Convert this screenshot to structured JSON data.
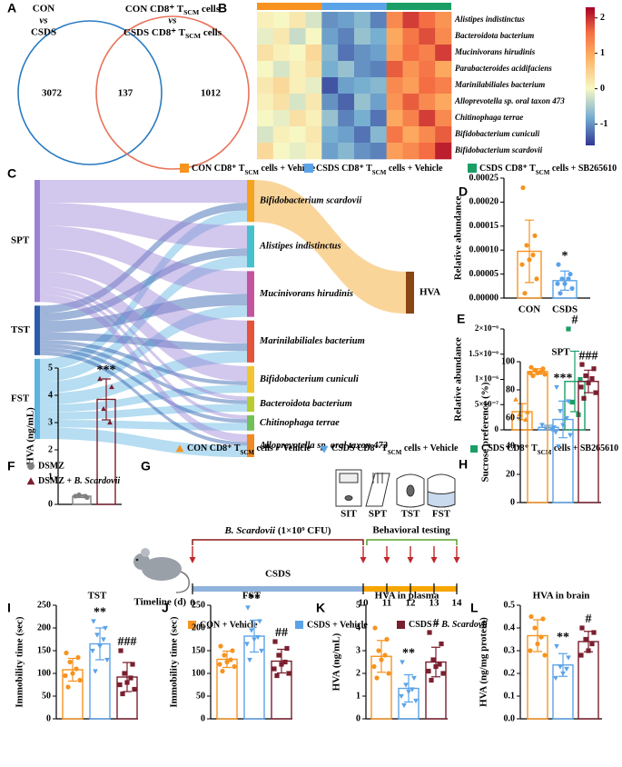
{
  "chart_data": [
    {
      "type": "venn",
      "label": "A",
      "sets": [
        {
          "color": "#2b7bc0",
          "lines": [
            "CON",
            {
              "text": "vs",
              "style": "italic"
            },
            "CSDS"
          ]
        },
        {
          "color": "#e8735a",
          "lines": [
            [
              "CON CD8⁺ T",
              {
                "text": "SCM",
                "style": "sub"
              },
              " cells"
            ],
            {
              "text": "vs",
              "style": "italic"
            },
            [
              "CSDS CD8⁺ T",
              {
                "text": "SCM",
                "style": "sub"
              },
              " cells"
            ]
          ]
        }
      ],
      "counts": [
        3072,
        137,
        1012
      ]
    },
    {
      "type": "heatmap",
      "label": "B",
      "rows": [
        "Alistipes indistinctus",
        "Bacteroidota bacterium",
        "Mucinivorans hirudinis",
        "Parabacteroides acidifaciens",
        "Marinilabiliales bacterium",
        "Alloprevotella sp. oral taxon 473",
        "Chitinophaga terrae",
        "Bifidobacterium cuniculi",
        "Bifidobacterium scardovii"
      ],
      "matrix": [
        [
          0.1,
          0.0,
          0.2,
          -0.2,
          -1.0,
          -0.9,
          -0.7,
          -1.1,
          1.3,
          1.9,
          1.6,
          1.2
        ],
        [
          -0.1,
          0.2,
          -0.3,
          0.0,
          -0.9,
          -1.1,
          -0.6,
          -0.8,
          1.0,
          1.5,
          1.8,
          1.3
        ],
        [
          0.3,
          0.1,
          0.0,
          0.4,
          -0.7,
          -1.2,
          -1.0,
          -0.9,
          1.1,
          1.6,
          1.4,
          1.9
        ],
        [
          0.0,
          -0.2,
          0.1,
          0.3,
          -0.8,
          -0.6,
          -1.0,
          -1.1,
          1.7,
          1.2,
          1.5,
          1.0
        ],
        [
          0.2,
          0.4,
          0.1,
          -0.1,
          -1.4,
          -0.9,
          -0.8,
          -0.7,
          1.3,
          1.1,
          1.6,
          1.4
        ],
        [
          0.1,
          0.3,
          -0.2,
          0.2,
          -1.0,
          -1.3,
          -0.6,
          -0.9,
          1.2,
          1.7,
          1.3,
          1.0
        ],
        [
          0.0,
          -0.1,
          0.3,
          0.1,
          -0.6,
          -1.1,
          -0.8,
          -1.2,
          1.0,
          1.4,
          1.9,
          1.3
        ],
        [
          -0.2,
          0.1,
          0.0,
          0.2,
          -0.8,
          -0.9,
          -1.2,
          -0.7,
          1.5,
          1.0,
          1.3,
          1.7
        ],
        [
          0.4,
          0.0,
          -0.1,
          0.1,
          -0.9,
          -0.7,
          -1.0,
          -1.1,
          1.1,
          1.3,
          1.6,
          2.1
        ]
      ],
      "clim": [
        -1.6,
        2.3
      ],
      "cticks": [
        -1,
        0,
        1,
        2
      ],
      "groups": [
        {
          "color": "#f7931e",
          "name": [
            "CON CD8⁺ T",
            {
              "text": "SCM",
              "style": "sub"
            },
            " cells + Vehicle"
          ]
        },
        {
          "color": "#5ba3e8",
          "name": [
            "CSDS CD8⁺ T",
            {
              "text": "SCM",
              "style": "sub"
            },
            " cells + Vehicle"
          ]
        },
        {
          "color": "#1a9e66",
          "name": [
            "CSDS CD8⁺ T",
            {
              "text": "SCM",
              "style": "sub"
            },
            " cells + SB265610"
          ]
        }
      ]
    },
    {
      "type": "sankey",
      "label": "C",
      "nodes": [
        {
          "name": "SPT",
          "color": "#9c82d4",
          "column": 0
        },
        {
          "name": "TST",
          "color": "#2a5caa",
          "column": 0
        },
        {
          "name": "FST",
          "color": "#5db4e0",
          "column": 0
        },
        {
          "name": "Bifidobacterium scardovii",
          "color": "#f5a21e",
          "column": 1
        },
        {
          "name": "Alistipes indistinctus",
          "color": "#48c1cf",
          "column": 1
        },
        {
          "name": "Mucinivorans hirudinis",
          "color": "#c2559e",
          "column": 1
        },
        {
          "name": "Marinilabiliales bacterium",
          "color": "#e5533a",
          "column": 1
        },
        {
          "name": "Bifidobacterium cuniculi",
          "color": "#f3c432",
          "column": 1
        },
        {
          "name": "Bacteroidota bacterium",
          "color": "#b8cc2e",
          "column": 1
        },
        {
          "name": "Chitinophaga terrae",
          "color": "#72c05a",
          "column": 1
        },
        {
          "name": "Alloprevotella sp. oral taxon 473",
          "color": "#f08a24",
          "column": 1
        },
        {
          "name": "HVA",
          "color": "#8b4513",
          "column": 2
        }
      ],
      "links": [
        {
          "source": 0,
          "target": 3,
          "value": 3
        },
        {
          "source": 1,
          "target": 3,
          "value": 1
        },
        {
          "source": 2,
          "target": 3,
          "value": 1.5
        },
        {
          "source": 0,
          "target": 4,
          "value": 3
        },
        {
          "source": 1,
          "target": 4,
          "value": 1
        },
        {
          "source": 2,
          "target": 4,
          "value": 1.5
        },
        {
          "source": 0,
          "target": 5,
          "value": 3
        },
        {
          "source": 1,
          "target": 5,
          "value": 1.5
        },
        {
          "source": 2,
          "target": 5,
          "value": 1.5
        },
        {
          "source": 0,
          "target": 6,
          "value": 3
        },
        {
          "source": 1,
          "target": 6,
          "value": 1
        },
        {
          "source": 2,
          "target": 6,
          "value": 1.5
        },
        {
          "source": 0,
          "target": 7,
          "value": 2
        },
        {
          "source": 1,
          "target": 7,
          "value": 0.5
        },
        {
          "source": 2,
          "target": 7,
          "value": 1
        },
        {
          "source": 0,
          "target": 8,
          "value": 0.5
        },
        {
          "source": 1,
          "target": 8,
          "value": 0.5
        },
        {
          "source": 2,
          "target": 8,
          "value": 1
        },
        {
          "source": 0,
          "target": 9,
          "value": 0.5
        },
        {
          "source": 1,
          "target": 9,
          "value": 0.5
        },
        {
          "source": 2,
          "target": 9,
          "value": 1
        },
        {
          "source": 0,
          "target": 10,
          "value": 1
        },
        {
          "source": 1,
          "target": 10,
          "value": 0.5
        },
        {
          "source": 2,
          "target": 10,
          "value": 1.5
        },
        {
          "source": 3,
          "target": 11,
          "value": 5.5
        }
      ]
    },
    {
      "type": "dotbar",
      "label": "D",
      "ylabel": "Relative abundance",
      "legend": false,
      "ylim": [
        0,
        0.00025
      ],
      "yticks": [
        {
          "value": 0,
          "label": "0.00000"
        },
        5e-05,
        {
          "value": 0.0001,
          "label": "0.00010"
        },
        0.00015,
        {
          "value": 0.0002,
          "label": "0.00020"
        },
        0.00025
      ],
      "groups": [
        {
          "name": "CON",
          "color": "#f7931e",
          "marker": "circle",
          "value": 9.75e-05,
          "error": 6.5e-05,
          "points": [
            0.00023,
            0.00013,
            0.00011,
            9e-05,
            8e-05,
            7e-05,
            4e-05,
            1e-05
          ]
        },
        {
          "name": "CSDS",
          "color": "#5ba3e8",
          "marker": "circle",
          "value": 3.63e-05,
          "error": 2e-05,
          "points": [
            7e-05,
            5e-05,
            4e-05,
            4e-05,
            3e-05,
            3e-05,
            2e-05,
            1e-05
          ],
          "annotation": "*"
        }
      ]
    },
    {
      "type": "dotbar",
      "label": "E",
      "ylabel": "Relative abundance",
      "legend": true,
      "ylim": [
        0,
        2e-06
      ],
      "yticks": [
        0,
        {
          "value": 5e-07,
          "label": "5×10⁻⁷"
        },
        {
          "value": 1e-06,
          "label": "1×10⁻⁶"
        },
        {
          "value": 1.5e-06,
          "label": "1.5×10⁻⁶"
        },
        {
          "value": 2e-06,
          "label": "2×10⁻⁶"
        }
      ],
      "groups": [
        {
          "name": [
            "CON CD8⁺ T",
            {
              "text": "SCM",
              "style": "sub"
            },
            " cells + Vehicle"
          ],
          "color": "#f7931e",
          "marker": "triangle",
          "value": 3.6e-07,
          "error": 1.6e-07,
          "points": [
            6e-07,
            3.5e-07,
            3e-07,
            2e-07
          ]
        },
        {
          "name": [
            "CSDS CD8⁺ T",
            {
              "text": "SCM",
              "style": "sub"
            },
            " cells + Vehicle"
          ],
          "color": "#5ba3e8",
          "marker": "triangle-down",
          "value": 5e-08,
          "error": 4e-08,
          "points": [
            1e-07,
            5e-08,
            3e-08,
            1e-08
          ]
        },
        {
          "name": [
            "CSDS CD8⁺ T",
            {
              "text": "SCM",
              "style": "sub"
            },
            " cells + SB265610"
          ],
          "color": "#1a9e66",
          "marker": "square",
          "value": 9.6e-07,
          "error": 6e-07,
          "points": [
            2e-06,
            1e-06,
            5.5e-07,
            3e-07
          ],
          "annotation": "#"
        }
      ]
    },
    {
      "type": "dotbar",
      "label": "F",
      "ylabel": "HVA (ng/mL)",
      "legend": true,
      "ylim": [
        0,
        5
      ],
      "yticks": [
        0,
        1,
        2,
        3,
        4,
        5
      ],
      "groups": [
        {
          "name": "DSMZ",
          "color": "#808080",
          "marker": "circle",
          "value": 0.3,
          "error": 0.05,
          "points": [
            0.3,
            0.25,
            0.35,
            0.3
          ]
        },
        {
          "name": [
            "DSMZ + ",
            {
              "text": "B. Scardovii",
              "style": "italic"
            }
          ],
          "color": "#7a1f2e",
          "marker": "triangle",
          "value": 3.85,
          "error": 0.75,
          "points": [
            4.6,
            4.3,
            3.5,
            3.0
          ],
          "annotation": "***"
        }
      ]
    },
    {
      "type": "timeline",
      "label": "G",
      "treatment": [
        {
          "text": "B. Scardovii",
          "style": "italic"
        },
        " (1×10⁹ CFU)"
      ],
      "testing": "Behavioral testing",
      "phase": "CSDS",
      "axis_label": "Timeline (d)",
      "days": [
        0,
        10,
        11,
        12,
        13,
        14
      ],
      "tests": [
        "SIT",
        "SPT",
        "TST",
        "FST"
      ],
      "legend": [
        {
          "name": "CON + Vehicle",
          "color": "#f7931e"
        },
        {
          "name": "CSDS + Vehicle",
          "color": "#5ba3e8"
        },
        {
          "name": [
            "CSDS + ",
            {
              "text": "B. Scardovii",
              "style": "italic"
            }
          ],
          "color": "#7a1f2e"
        }
      ]
    },
    {
      "type": "dotbar",
      "label": "H",
      "title": "SPT",
      "ylabel": "Sucrose preference (%)",
      "legend": false,
      "ylim": [
        0,
        100
      ],
      "yticks": [
        0,
        20,
        40,
        60,
        80,
        100
      ],
      "groups": [
        {
          "color": "#f7931e",
          "marker": "circle",
          "value": 93,
          "error": 2,
          "points": [
            96,
            95,
            94,
            93,
            92,
            92,
            91,
            90
          ]
        },
        {
          "color": "#5ba3e8",
          "marker": "triangle-down",
          "value": 59,
          "error": 13,
          "points": [
            82,
            72,
            65,
            60,
            55,
            50,
            48,
            40
          ],
          "annotation": "***"
        },
        {
          "color": "#7a1f2e",
          "marker": "square",
          "value": 86,
          "error": 8,
          "points": [
            98,
            95,
            90,
            88,
            85,
            82,
            78,
            74
          ],
          "annotation": "###"
        }
      ]
    },
    {
      "type": "dotbar",
      "label": "I",
      "title": "TST",
      "ylabel": "Immobility time (sec)",
      "legend": false,
      "ylim": [
        0,
        250
      ],
      "yticks": [
        0,
        50,
        100,
        150,
        200,
        250
      ],
      "groups": [
        {
          "color": "#f7931e",
          "marker": "circle",
          "value": 108,
          "error": 25,
          "points": [
            145,
            135,
            125,
            110,
            100,
            95,
            85,
            70
          ]
        },
        {
          "color": "#5ba3e8",
          "marker": "triangle-down",
          "value": 165,
          "error": 35,
          "points": [
            215,
            200,
            185,
            175,
            160,
            150,
            130,
            105
          ],
          "annotation": "**"
        },
        {
          "color": "#7a1f2e",
          "marker": "square",
          "value": 92,
          "error": 32,
          "points": [
            150,
            120,
            100,
            90,
            80,
            75,
            65,
            55
          ],
          "annotation": "###"
        }
      ]
    },
    {
      "type": "dotbar",
      "label": "J",
      "title": "FST",
      "ylabel": "Immobility time (sec)",
      "legend": false,
      "ylim": [
        0,
        250
      ],
      "yticks": [
        0,
        50,
        100,
        150,
        200,
        250
      ],
      "groups": [
        {
          "color": "#f7931e",
          "marker": "circle",
          "value": 131,
          "error": 18,
          "points": [
            160,
            150,
            140,
            130,
            125,
            120,
            115,
            105
          ]
        },
        {
          "color": "#5ba3e8",
          "marker": "triangle-down",
          "value": 182,
          "error": 35,
          "points": [
            245,
            215,
            195,
            180,
            175,
            165,
            150,
            130
          ],
          "annotation": "**"
        },
        {
          "color": "#7a1f2e",
          "marker": "square",
          "value": 127,
          "error": 26,
          "points": [
            170,
            155,
            140,
            125,
            120,
            110,
            100,
            95
          ],
          "annotation": "##"
        }
      ]
    },
    {
      "type": "dotbar",
      "label": "K",
      "title": "HVA in plasma",
      "ylabel": "HVA (ng/mL)",
      "legend": false,
      "ylim": [
        0,
        5
      ],
      "yticks": [
        0,
        1,
        2,
        3,
        4,
        5
      ],
      "groups": [
        {
          "color": "#f7931e",
          "marker": "circle",
          "value": 2.75,
          "error": 0.7,
          "points": [
            4.0,
            3.5,
            3.0,
            2.8,
            2.6,
            2.3,
            2.0,
            1.8
          ]
        },
        {
          "color": "#5ba3e8",
          "marker": "triangle-down",
          "value": 1.34,
          "error": 0.6,
          "points": [
            2.5,
            1.8,
            1.5,
            1.3,
            1.2,
            1.0,
            0.8,
            0.6
          ],
          "annotation": "**"
        },
        {
          "color": "#7a1f2e",
          "marker": "square",
          "value": 2.5,
          "error": 0.65,
          "points": [
            3.8,
            3.3,
            2.6,
            2.4,
            2.3,
            2.1,
            2.0,
            1.7
          ],
          "annotation": "#"
        }
      ]
    },
    {
      "type": "dotbar",
      "label": "L",
      "title": "HVA in brain",
      "ylabel": "HVA (ng/mg protein)",
      "legend": false,
      "ylim": [
        0,
        0.5
      ],
      "yticks": [
        {
          "value": 0,
          "label": "0.0"
        },
        0.1,
        0.2,
        0.3,
        0.4,
        0.5
      ],
      "groups": [
        {
          "color": "#f7931e",
          "marker": "circle",
          "value": 0.366,
          "error": 0.07,
          "points": [
            0.45,
            0.44,
            0.4,
            0.36,
            0.33,
            0.3,
            0.28
          ]
        },
        {
          "color": "#5ba3e8",
          "marker": "triangle-down",
          "value": 0.237,
          "error": 0.05,
          "points": [
            0.32,
            0.27,
            0.23,
            0.22,
            0.2,
            0.18
          ],
          "annotation": "**"
        },
        {
          "color": "#7a1f2e",
          "marker": "square",
          "value": 0.34,
          "error": 0.045,
          "points": [
            0.4,
            0.38,
            0.35,
            0.33,
            0.3,
            0.28
          ],
          "annotation": "#"
        }
      ]
    }
  ]
}
